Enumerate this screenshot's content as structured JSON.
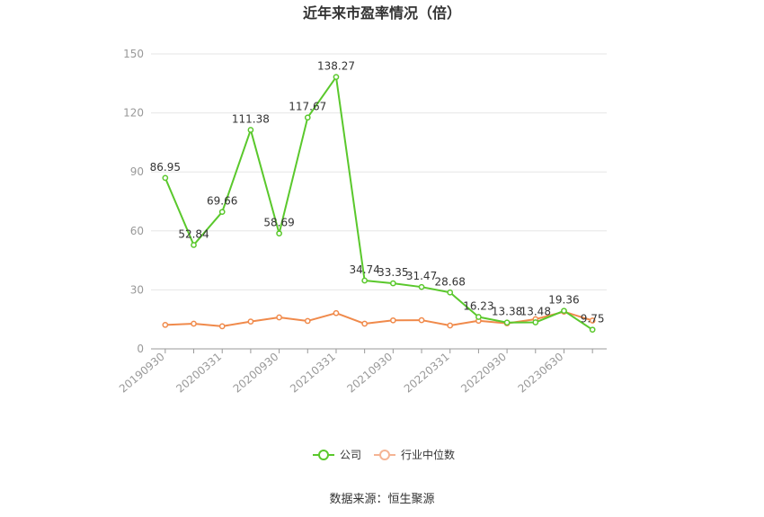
{
  "chart_data": {
    "type": "line",
    "title": "近年来市盈率情况（倍）",
    "source": "数据来源：恒生聚源",
    "x": [
      "20190930",
      "",
      "20200331",
      "",
      "20200930",
      "",
      "20210331",
      "",
      "20210930",
      "",
      "20220331",
      "",
      "20220930",
      "",
      "20230630",
      ""
    ],
    "x_tick_labels": [
      "20190930",
      "20200331",
      "20200930",
      "20210331",
      "20210930",
      "20220331",
      "20220930",
      "20230630"
    ],
    "ylim": [
      0,
      150
    ],
    "yticks": [
      0,
      30,
      60,
      90,
      120,
      150
    ],
    "grid": true,
    "legend_position": "bottom",
    "series": [
      {
        "name": "公司",
        "color": "#5ac82c",
        "values": [
          86.95,
          52.84,
          69.66,
          111.38,
          58.69,
          117.67,
          138.27,
          34.74,
          33.35,
          31.47,
          28.68,
          16.23,
          13.38,
          13.48,
          19.36,
          9.75
        ],
        "labels": [
          "86.95",
          "52.84",
          "69.66",
          "111.38",
          "58.69",
          "117.67",
          "138.27",
          "34.74",
          "33.35",
          "31.47",
          "28.68",
          "16.23",
          "13.38",
          "13.48",
          "19.36",
          "9.75"
        ]
      },
      {
        "name": "行业中位数",
        "color": "#f08a4b",
        "values": [
          12.2,
          12.8,
          11.5,
          13.9,
          16.0,
          14.2,
          18.2,
          12.8,
          14.5,
          14.6,
          11.9,
          14.3,
          13.0,
          15.1,
          18.9,
          14.4
        ]
      }
    ]
  }
}
